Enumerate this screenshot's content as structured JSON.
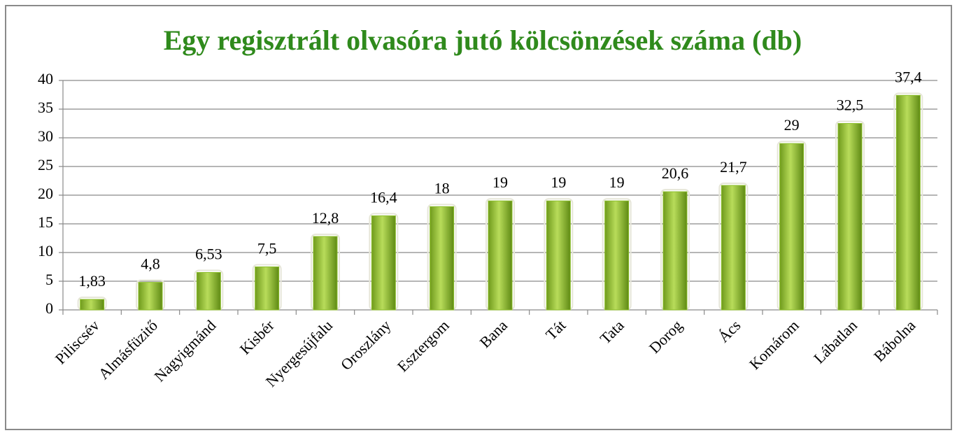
{
  "chart_data": {
    "type": "bar",
    "title": "Egy regisztrált olvasóra jutó kölcsönzések száma (db)",
    "categories": [
      "Piliscsév",
      "Almásfüzitő",
      "Nagyigmánd",
      "Kisbér",
      "Nyergesújfalu",
      "Oroszlány",
      "Esztergom",
      "Bana",
      "Tát",
      "Tata",
      "Dorog",
      "Ács",
      "Komárom",
      "Lábatlan",
      "Bábolna"
    ],
    "values": [
      1.83,
      4.8,
      6.53,
      7.5,
      12.8,
      16.4,
      18,
      19,
      19,
      19,
      20.6,
      21.7,
      29,
      32.5,
      37.4
    ],
    "value_labels": [
      "1,83",
      "4,8",
      "6,53",
      "7,5",
      "12,8",
      "16,4",
      "18",
      "19",
      "19",
      "19",
      "20,6",
      "21,7",
      "29",
      "32,5",
      "37,4"
    ],
    "color": "#8cbf2a",
    "ylim": [
      0,
      40
    ],
    "yticks": [
      0,
      5,
      10,
      15,
      20,
      25,
      30,
      35,
      40
    ],
    "grid": true
  }
}
